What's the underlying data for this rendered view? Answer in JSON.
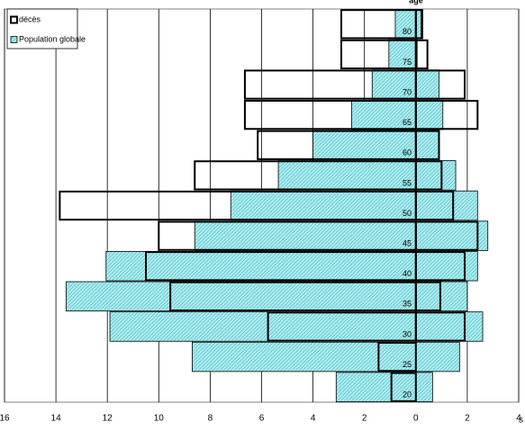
{
  "chart_data": {
    "type": "pyramid",
    "y_label": "âge",
    "x_label": "s",
    "categories": [
      "20",
      "25",
      "30",
      "35",
      "40",
      "45",
      "50",
      "55",
      "60",
      "65",
      "70",
      "75",
      "80"
    ],
    "series": [
      {
        "name": "Population globale",
        "color": "#a6eef2",
        "left": [
          -3.1,
          -8.7,
          -11.9,
          -13.6,
          -12.05,
          -8.6,
          -7.2,
          -5.35,
          -4.0,
          -2.5,
          -1.7,
          -1.05,
          -0.8
        ],
        "right": [
          0.65,
          1.7,
          2.6,
          2.0,
          2.4,
          2.8,
          2.4,
          1.55,
          0.9,
          1.05,
          0.9,
          0.05,
          0.2
        ]
      },
      {
        "name": "décès",
        "color": "#000000",
        "left": [
          -0.95,
          -1.45,
          -5.75,
          -9.55,
          -10.5,
          -10.0,
          -13.85,
          -8.6,
          -6.15,
          -6.65,
          -6.65,
          -2.9,
          -2.9
        ],
        "right": [
          0,
          0,
          1.9,
          0.95,
          1.9,
          2.4,
          1.45,
          1.0,
          0.9,
          2.4,
          1.9,
          0.45,
          0.25
        ]
      }
    ],
    "xlim": [
      -16,
      4
    ],
    "xticks": [
      {
        "value": -16,
        "label": "16"
      },
      {
        "value": -14,
        "label": "14"
      },
      {
        "value": -12,
        "label": "12"
      },
      {
        "value": -10,
        "label": "10"
      },
      {
        "value": -8,
        "label": "8"
      },
      {
        "value": -6,
        "label": "6"
      },
      {
        "value": -4,
        "label": "4"
      },
      {
        "value": -2,
        "label": "2"
      },
      0,
      2,
      4
    ],
    "grid": true,
    "legend": "upper left"
  }
}
